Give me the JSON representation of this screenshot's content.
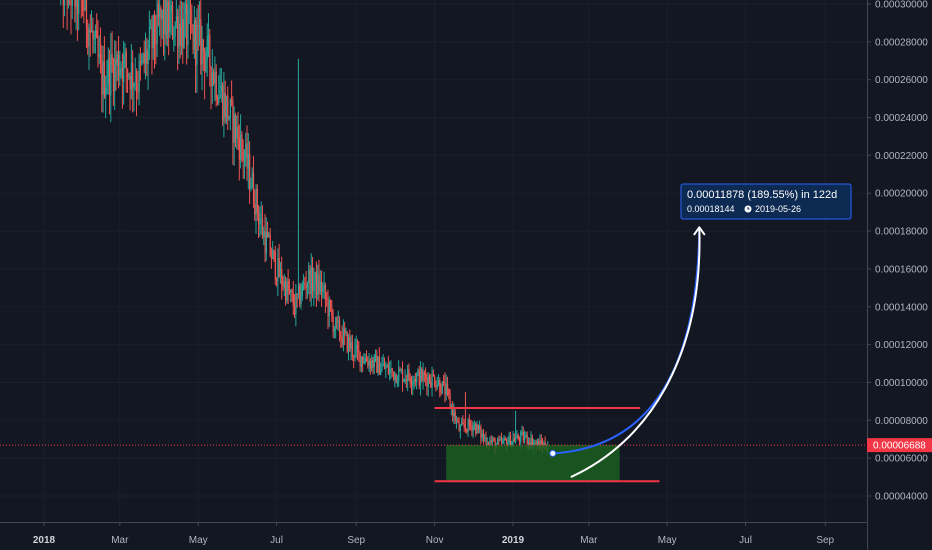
{
  "chart_data": {
    "type": "candlestick",
    "y_axis": {
      "min": 3e-05,
      "max": 0.0003,
      "ticks": [
        "0.00004000",
        "0.00006000",
        "0.00008000",
        "0.00010000",
        "0.00012000",
        "0.00014000",
        "0.00016000",
        "0.00018000",
        "0.00020000",
        "0.00022000",
        "0.00024000",
        "0.00026000",
        "0.00028000",
        "0.00030000"
      ],
      "position": "right"
    },
    "x_axis": {
      "start": "2018-01-01",
      "end": "2019-10-15",
      "ticks": [
        {
          "date": "2018-01-01",
          "label": "2018",
          "bold": true
        },
        {
          "date": "2018-03-01",
          "label": "Mar",
          "bold": false
        },
        {
          "date": "2018-05-01",
          "label": "May",
          "bold": false
        },
        {
          "date": "2018-07-01",
          "label": "Jul",
          "bold": false
        },
        {
          "date": "2018-09-01",
          "label": "Sep",
          "bold": false
        },
        {
          "date": "2018-11-01",
          "label": "Nov",
          "bold": false
        },
        {
          "date": "2019-01-01",
          "label": "2019",
          "bold": true
        },
        {
          "date": "2019-03-01",
          "label": "Mar",
          "bold": false
        },
        {
          "date": "2019-05-01",
          "label": "May",
          "bold": false
        },
        {
          "date": "2019-07-01",
          "label": "Jul",
          "bold": false
        },
        {
          "date": "2019-09-01",
          "label": "Sep",
          "bold": false
        }
      ]
    },
    "price_path": [
      [
        "2018-01-14",
        0.00031
      ],
      [
        "2018-02-01",
        0.0003
      ],
      [
        "2018-02-15",
        0.00026
      ],
      [
        "2018-03-01",
        0.00027
      ],
      [
        "2018-03-15",
        0.00026
      ],
      [
        "2018-04-01",
        0.00029
      ],
      [
        "2018-04-15",
        0.00029
      ],
      [
        "2018-05-01",
        0.00028
      ],
      [
        "2018-05-10",
        0.00027
      ],
      [
        "2018-05-20",
        0.00025
      ],
      [
        "2018-06-01",
        0.00023
      ],
      [
        "2018-06-10",
        0.00021
      ],
      [
        "2018-06-20",
        0.00018
      ],
      [
        "2018-07-01",
        0.00016
      ],
      [
        "2018-07-15",
        0.00014
      ],
      [
        "2018-07-25",
        0.000155
      ],
      [
        "2018-08-05",
        0.00015
      ],
      [
        "2018-08-15",
        0.00013
      ],
      [
        "2018-09-01",
        0.000115
      ],
      [
        "2018-09-15",
        0.00011
      ],
      [
        "2018-10-01",
        0.000105
      ],
      [
        "2018-10-15",
        0.000103
      ],
      [
        "2018-11-01",
        0.000102
      ],
      [
        "2018-11-10",
        9.5e-05
      ],
      [
        "2018-11-20",
        7.5e-05
      ],
      [
        "2018-12-01",
        7.8e-05
      ],
      [
        "2018-12-10",
        7e-05
      ],
      [
        "2018-12-20",
        6.7e-05
      ],
      [
        "2019-01-01",
        7e-05
      ],
      [
        "2019-01-10",
        7.1e-05
      ],
      [
        "2019-01-20",
        6.7e-05
      ],
      [
        "2019-01-28",
        6.69e-05
      ]
    ],
    "spikes": [
      [
        "2018-07-18",
        0.000271
      ],
      [
        "2018-11-25",
        9.5e-05
      ],
      [
        "2019-01-03",
        8.5e-05
      ]
    ],
    "up_color": "#26a69a",
    "down_color": "#ef5350",
    "last_price": {
      "label": "0.00006688",
      "value": 6.688e-05,
      "color": "#f23645"
    },
    "resistance": {
      "value": 8.65e-05,
      "from": "2018-11-01",
      "to": "2019-04-10",
      "color": "#f23645"
    },
    "support": {
      "value": 4.78e-05,
      "from": "2018-11-01",
      "to": "2019-04-25",
      "color": "#f23645"
    },
    "accumulation_box": {
      "from": "2018-11-10",
      "to": "2019-03-25",
      "y_low": 4.8e-05,
      "y_high": 6.7e-05,
      "color": "#1b5e20"
    },
    "projection_curve": {
      "from_date": "2019-02-01",
      "from_value": 6.25e-05,
      "to_date": "2019-05-26",
      "to_value": 0.00018144,
      "color": "#2962ff"
    },
    "arrow_curve": {
      "from_date": "2019-02-15",
      "from_value": 5e-05,
      "to_date": "2019-05-26",
      "to_value": 0.000182,
      "color": "#ffffff"
    },
    "measure": {
      "line1": "0.00011878 (189.55%) in 122d",
      "line2": "0.00018144",
      "line2_date": "2019-05-26",
      "bg_color": "#0d2a52",
      "border_color": "#2962ff",
      "clock_icon": "clock-icon"
    }
  }
}
